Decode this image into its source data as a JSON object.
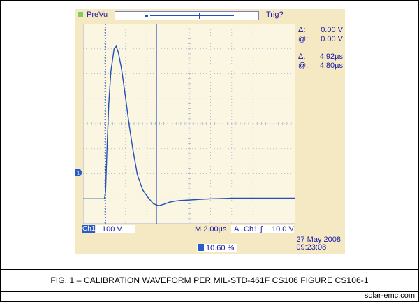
{
  "scope": {
    "mode_label": "PreVu",
    "trigger_status": "Trig?",
    "channel_label": "Ch1",
    "volts_per_div": "100 V",
    "timebase": "M 2.00µs",
    "trigger_label": "A",
    "trigger_source": "Ch1",
    "trigger_slope_symbol": "ʃ",
    "trigger_level": "10.0 V",
    "trigger_position": "10.60 %",
    "date": "27 May 2008",
    "time": "09:23:08",
    "ch1_marker_text": "1",
    "trig_marker_text": "T",
    "measurements": [
      {
        "symbol": "Δ:",
        "value": "0.00 V"
      },
      {
        "symbol": "@:",
        "value": "0.00 V"
      },
      {
        "symbol": "Δ:",
        "value": "4.92µs"
      },
      {
        "symbol": "@:",
        "value": "4.80µs"
      }
    ],
    "colors": {
      "screen": "#f5e9c4",
      "trace": "#2350b8",
      "grid": "#a9b0c9",
      "text": "#1a1aa8"
    }
  },
  "caption": "FIG. 1 – CALIBRATION WAVEFORM PER MIL-STD-461F CS106 FIGURE CS106-1",
  "credit": "solar-emc.com",
  "chart_data": {
    "type": "line",
    "title": "",
    "xlabel": "",
    "ylabel": "",
    "x_units": "µs",
    "y_units": "V",
    "xlim": [
      -2.12,
      17.88
    ],
    "ylim": [
      -100,
      700
    ],
    "grid": true,
    "divisions": {
      "x": 10,
      "y": 8
    },
    "series": [
      {
        "x": [
          -2.12,
          -0.5,
          -0.1,
          0.0,
          0.15,
          0.3,
          0.5,
          0.8,
          1.0,
          1.2,
          1.5,
          1.8,
          2.2,
          2.6,
          3.0,
          3.5,
          4.0,
          4.5,
          5.0,
          5.5,
          6.0,
          6.5,
          7.0,
          8.0,
          9.0,
          10.0,
          11.0,
          12.0,
          14.0,
          17.88
        ],
        "y": [
          0,
          0,
          0,
          30,
          220,
          380,
          510,
          600,
          610,
          585,
          520,
          430,
          300,
          190,
          95,
          35,
          5,
          -20,
          -28,
          -22,
          -14,
          -10,
          -7,
          -5,
          -2,
          0,
          1,
          2,
          2,
          2
        ]
      }
    ]
  }
}
